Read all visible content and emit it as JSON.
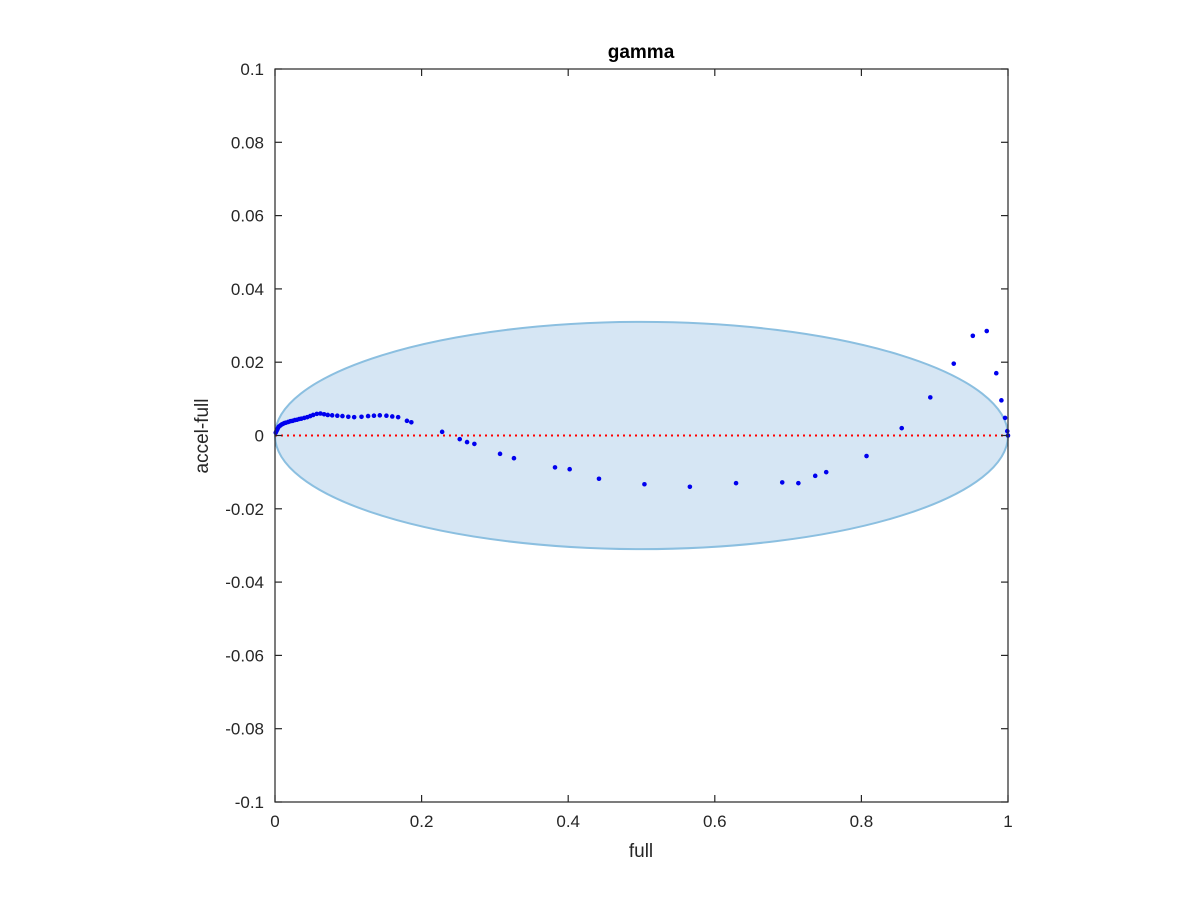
{
  "chart_data": {
    "type": "scatter",
    "title": "gamma",
    "xlabel": "full",
    "ylabel": "accel-full",
    "xlim": [
      0,
      1
    ],
    "ylim": [
      -0.1,
      0.1
    ],
    "xticks": [
      0,
      0.2,
      0.4,
      0.6,
      0.8,
      1
    ],
    "xtick_labels": [
      "0",
      "0.2",
      "0.4",
      "0.6",
      "0.8",
      "1"
    ],
    "yticks": [
      0.1,
      0.08,
      0.06,
      0.04,
      0.02,
      0,
      -0.02,
      -0.04,
      -0.06,
      -0.08,
      -0.1
    ],
    "ytick_labels": [
      "0.1",
      "0.08",
      "0.06",
      "0.04",
      "0.02",
      "0",
      "-0.02",
      "-0.04",
      "-0.06",
      "-0.08",
      "-0.1"
    ],
    "grid": false,
    "colors": {
      "points": "#0000ee",
      "ellipse_fill": "#d6e6f4",
      "ellipse_edge": "#8bbfe0",
      "reference_line": "#ff0000"
    },
    "reference_line": {
      "y": 0,
      "style": "dotted"
    },
    "ellipse": {
      "cx": 0.5,
      "cy": 0,
      "rx": 0.5,
      "ry": 0.031
    },
    "points": [
      [
        0.001,
        0.0008
      ],
      [
        0.002,
        0.0012
      ],
      [
        0.003,
        0.0016
      ],
      [
        0.004,
        0.002
      ],
      [
        0.005,
        0.0024
      ],
      [
        0.007,
        0.0027
      ],
      [
        0.009,
        0.003
      ],
      [
        0.011,
        0.0032
      ],
      [
        0.013,
        0.0034
      ],
      [
        0.015,
        0.0035
      ],
      [
        0.018,
        0.0037
      ],
      [
        0.021,
        0.0039
      ],
      [
        0.024,
        0.004
      ],
      [
        0.027,
        0.0042
      ],
      [
        0.03,
        0.0043
      ],
      [
        0.033,
        0.0045
      ],
      [
        0.036,
        0.0046
      ],
      [
        0.04,
        0.0048
      ],
      [
        0.044,
        0.005
      ],
      [
        0.048,
        0.0053
      ],
      [
        0.052,
        0.0056
      ],
      [
        0.057,
        0.0059
      ],
      [
        0.062,
        0.006
      ],
      [
        0.067,
        0.0058
      ],
      [
        0.072,
        0.0056
      ],
      [
        0.078,
        0.0055
      ],
      [
        0.085,
        0.0054
      ],
      [
        0.092,
        0.0053
      ],
      [
        0.1,
        0.0051
      ],
      [
        0.108,
        0.005
      ],
      [
        0.118,
        0.0051
      ],
      [
        0.127,
        0.0053
      ],
      [
        0.135,
        0.0054
      ],
      [
        0.143,
        0.0055
      ],
      [
        0.152,
        0.0054
      ],
      [
        0.16,
        0.0052
      ],
      [
        0.168,
        0.005
      ],
      [
        0.18,
        0.004
      ],
      [
        0.186,
        0.0036
      ],
      [
        0.228,
        0.001
      ],
      [
        0.252,
        -0.001
      ],
      [
        0.262,
        -0.0018
      ],
      [
        0.272,
        -0.0023
      ],
      [
        0.307,
        -0.005
      ],
      [
        0.326,
        -0.0062
      ],
      [
        0.382,
        -0.0087
      ],
      [
        0.402,
        -0.0092
      ],
      [
        0.442,
        -0.0118
      ],
      [
        0.504,
        -0.0133
      ],
      [
        0.566,
        -0.014
      ],
      [
        0.629,
        -0.013
      ],
      [
        0.692,
        -0.0128
      ],
      [
        0.714,
        -0.013
      ],
      [
        0.737,
        -0.011
      ],
      [
        0.752,
        -0.01
      ],
      [
        0.807,
        -0.0056
      ],
      [
        0.855,
        0.002
      ],
      [
        0.894,
        0.0104
      ],
      [
        0.926,
        0.0196
      ],
      [
        0.952,
        0.0272
      ],
      [
        0.971,
        0.0285
      ],
      [
        0.984,
        0.017
      ],
      [
        0.991,
        0.0096
      ],
      [
        0.996,
        0.0048
      ],
      [
        0.999,
        0.0012
      ],
      [
        1.0,
        0.0
      ]
    ]
  }
}
